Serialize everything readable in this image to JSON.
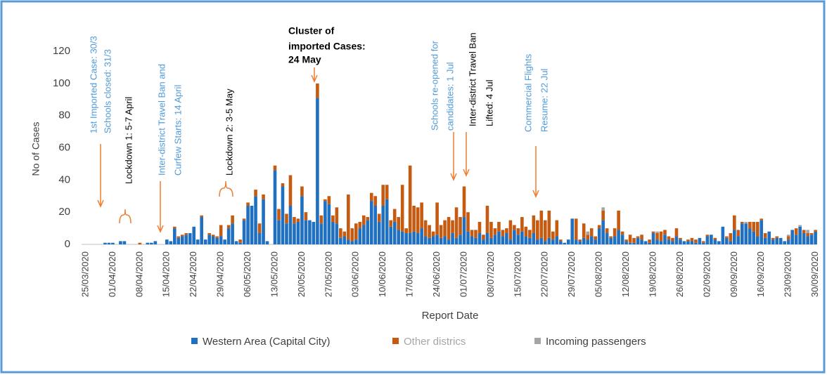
{
  "chart_data": {
    "type": "stacked-bar",
    "y_label": "No of Cases",
    "x_label": "Report Date",
    "ylim": [
      0,
      120
    ],
    "yticks": [
      0,
      20,
      40,
      60,
      80,
      100,
      120
    ],
    "categories": [
      "25/03/2020",
      null,
      null,
      null,
      null,
      null,
      null,
      "01/04/2020",
      null,
      null,
      null,
      null,
      null,
      null,
      "08/04/2020",
      null,
      null,
      null,
      null,
      null,
      null,
      "15/04/2020",
      null,
      null,
      null,
      null,
      null,
      null,
      "22/04/2020",
      null,
      null,
      null,
      null,
      null,
      null,
      "29/04/2020",
      null,
      null,
      null,
      null,
      null,
      null,
      "06/05/2020",
      null,
      null,
      null,
      null,
      null,
      null,
      "13/05/2020",
      null,
      null,
      null,
      null,
      null,
      null,
      "20/05/2020",
      null,
      null,
      null,
      null,
      null,
      null,
      "27/05/2020",
      null,
      null,
      null,
      null,
      null,
      null,
      "03/06/2020",
      null,
      null,
      null,
      null,
      null,
      null,
      "10/06/2020",
      null,
      null,
      null,
      null,
      null,
      null,
      "17/06/2020",
      null,
      null,
      null,
      null,
      null,
      null,
      "24/06/2020",
      null,
      null,
      null,
      null,
      null,
      null,
      "01/07/2020",
      null,
      null,
      null,
      null,
      null,
      null,
      "08/07/2020",
      null,
      null,
      null,
      null,
      null,
      null,
      "15/07/2020",
      null,
      null,
      null,
      null,
      null,
      null,
      "22/07/2020",
      null,
      null,
      null,
      null,
      null,
      null,
      "29/07/2020",
      null,
      null,
      null,
      null,
      null,
      null,
      "05/08/2020",
      null,
      null,
      null,
      null,
      null,
      null,
      "12/08/2020",
      null,
      null,
      null,
      null,
      null,
      null,
      "19/08/2020",
      null,
      null,
      null,
      null,
      null,
      null,
      "26/08/2020",
      null,
      null,
      null,
      null,
      null,
      null,
      "02/09/2020",
      null,
      null,
      null,
      null,
      null,
      null,
      "09/09/2020",
      null,
      null,
      null,
      null,
      null,
      null,
      "16/09/2020",
      null,
      null,
      null,
      null,
      null,
      null,
      "23/09/2020",
      null,
      null,
      null,
      null,
      null,
      null,
      "30/09/2020"
    ],
    "series": [
      {
        "name": "Western Area (Capital City)",
        "color": "#1f70c1",
        "values": [
          0,
          0,
          0,
          0,
          0,
          1,
          1,
          1,
          0,
          2,
          2,
          0,
          0,
          0,
          0,
          0,
          1,
          1,
          2,
          0,
          0,
          3,
          2,
          10,
          4,
          5,
          6,
          7,
          11,
          3,
          17,
          3,
          6,
          5,
          4,
          5,
          3,
          10,
          13,
          2,
          1,
          15,
          24,
          24,
          30,
          7,
          28,
          2,
          0,
          46,
          15,
          36,
          13,
          24,
          13,
          14,
          30,
          15,
          15,
          14,
          91,
          13,
          27,
          25,
          14,
          13,
          4,
          5,
          3,
          2,
          3,
          10,
          12,
          15,
          27,
          24,
          14,
          24,
          28,
          11,
          14,
          9,
          8,
          7,
          7,
          8,
          7,
          10,
          5,
          4,
          5,
          6,
          4,
          5,
          3,
          7,
          4,
          6,
          17,
          8,
          5,
          4,
          7,
          3,
          7,
          4,
          6,
          8,
          5,
          7,
          3,
          9,
          6,
          8,
          5,
          4,
          7,
          3,
          4,
          2,
          4,
          3,
          5,
          2,
          1,
          3,
          16,
          3,
          2,
          4,
          3,
          5,
          3,
          10,
          15,
          7,
          4,
          5,
          9,
          6,
          2,
          1,
          1,
          4,
          3,
          2,
          1,
          7,
          3,
          2,
          6,
          3,
          2,
          5,
          3,
          2,
          2,
          2,
          1,
          4,
          1,
          5,
          6,
          3,
          2,
          11,
          4,
          2,
          9,
          5,
          13,
          13,
          10,
          8,
          5,
          15,
          4,
          8,
          3,
          4,
          4,
          2,
          3,
          9,
          6,
          11,
          7,
          5,
          6,
          8
        ]
      },
      {
        "name": "Other districs",
        "color": "#c55a11",
        "values": [
          0,
          0,
          0,
          0,
          0,
          0,
          0,
          0,
          0,
          0,
          0,
          0,
          0,
          0,
          1,
          0,
          0,
          0,
          0,
          0,
          0,
          0,
          0,
          1,
          1,
          1,
          1,
          0,
          0,
          0,
          1,
          0,
          1,
          1,
          1,
          7,
          0,
          2,
          5,
          0,
          2,
          1,
          2,
          0,
          4,
          6,
          3,
          0,
          0,
          3,
          7,
          2,
          6,
          19,
          4,
          2,
          6,
          5,
          0,
          0,
          9,
          5,
          1,
          5,
          4,
          10,
          6,
          3,
          28,
          8,
          10,
          4,
          6,
          2,
          5,
          6,
          5,
          13,
          9,
          4,
          8,
          8,
          29,
          3,
          42,
          16,
          16,
          16,
          10,
          8,
          3,
          20,
          8,
          10,
          14,
          8,
          19,
          11,
          19,
          12,
          4,
          5,
          7,
          3,
          17,
          10,
          4,
          6,
          4,
          3,
          12,
          3,
          4,
          9,
          6,
          5,
          11,
          12,
          17,
          13,
          17,
          5,
          10,
          1,
          0,
          0,
          0,
          13,
          1,
          9,
          3,
          5,
          2,
          2,
          6,
          3,
          1,
          5,
          12,
          2,
          1,
          5,
          3,
          1,
          3,
          0,
          2,
          1,
          4,
          6,
          3,
          2,
          2,
          5,
          1,
          0,
          1,
          2,
          2,
          0,
          1,
          1,
          0,
          1,
          0,
          0,
          1,
          5,
          9,
          4,
          1,
          0,
          4,
          6,
          9,
          1,
          3,
          0,
          1,
          1,
          0,
          0,
          2,
          0,
          4,
          0,
          2,
          2,
          1,
          1
        ]
      },
      {
        "name": "Incoming passengers",
        "color": "#a5a5a5",
        "values": [
          0,
          0,
          0,
          0,
          0,
          0,
          0,
          0,
          0,
          0,
          0,
          0,
          0,
          0,
          0,
          0,
          0,
          0,
          0,
          0,
          0,
          0,
          0,
          0,
          0,
          0,
          0,
          0,
          0,
          0,
          0,
          0,
          0,
          0,
          0,
          0,
          0,
          0,
          0,
          0,
          0,
          0,
          0,
          0,
          0,
          0,
          0,
          0,
          0,
          0,
          0,
          0,
          0,
          0,
          0,
          0,
          0,
          0,
          0,
          0,
          0,
          0,
          0,
          0,
          0,
          0,
          0,
          0,
          0,
          0,
          0,
          0,
          0,
          0,
          0,
          0,
          0,
          0,
          0,
          0,
          0,
          0,
          0,
          0,
          0,
          0,
          0,
          0,
          0,
          0,
          0,
          0,
          0,
          0,
          0,
          0,
          0,
          0,
          0,
          0,
          0,
          0,
          0,
          0,
          0,
          0,
          0,
          0,
          0,
          0,
          0,
          0,
          0,
          0,
          0,
          0,
          0,
          0,
          0,
          0,
          0,
          0,
          0,
          0,
          0,
          0,
          0,
          0,
          0,
          0,
          2,
          0,
          0,
          0,
          2,
          0,
          0,
          0,
          0,
          0,
          0,
          0,
          0,
          0,
          0,
          0,
          0,
          0,
          1,
          0,
          0,
          0,
          0,
          0,
          0,
          0,
          0,
          0,
          0,
          0,
          0,
          0,
          0,
          0,
          0,
          0,
          0,
          0,
          0,
          0,
          0,
          1,
          0,
          0,
          0,
          0,
          0,
          0,
          0,
          0,
          0,
          0,
          1,
          0,
          0,
          1,
          0,
          2,
          0,
          0
        ]
      }
    ],
    "annotations": [
      {
        "lines": [
          "1st Imported Case: 30/3",
          "Schools closed: 31/3"
        ],
        "color": "#4f9ad8"
      },
      {
        "lines": [
          "Lockdown 1: 5-7 April"
        ],
        "color": "#000000"
      },
      {
        "lines": [
          "Inter-district Travel Ban and",
          "Curfew Starts: 14 April"
        ],
        "color": "#4f9ad8"
      },
      {
        "lines": [
          "Lockdown 2: 3-5 May"
        ],
        "color": "#000000"
      },
      {
        "lines": [
          "Cluster of",
          "imported Cases:",
          "24 May"
        ],
        "color": "#000000"
      },
      {
        "lines": [
          "Schools re-opened for",
          "candidates: 1 Jul"
        ],
        "color": "#4f9ad8"
      },
      {
        "lines": [
          "Inter-district Travel Ban",
          "Lifted: 4 Jul"
        ],
        "color": "#000000"
      },
      {
        "lines": [
          "Commercial Flights",
          "Resume: 22 Jul"
        ],
        "color": "#4f9ad8"
      }
    ]
  }
}
